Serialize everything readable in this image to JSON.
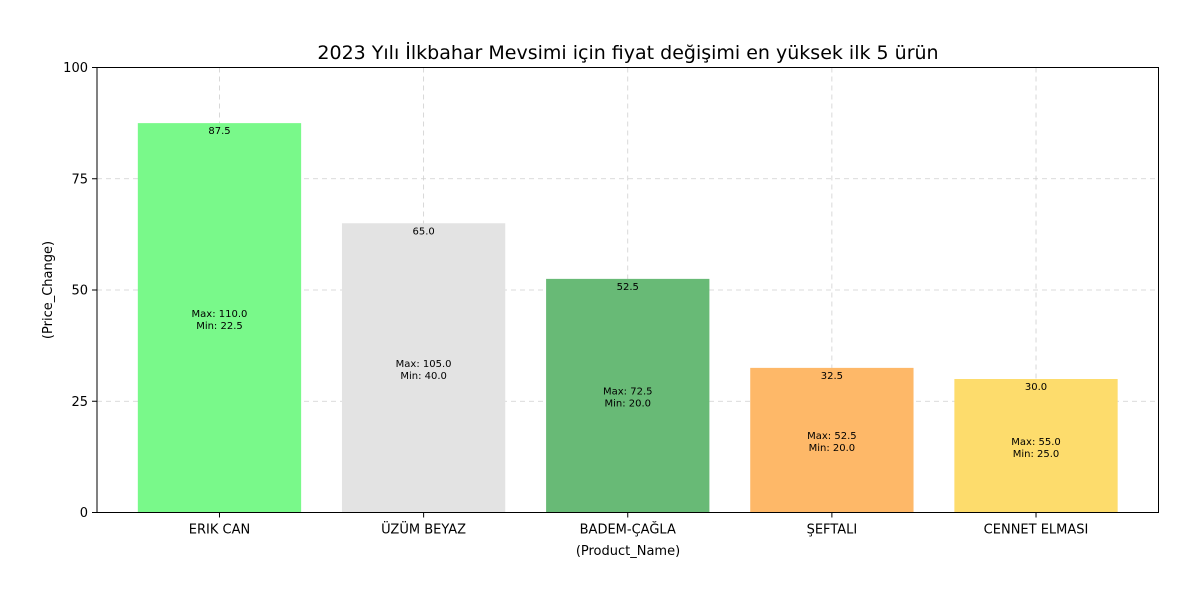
{
  "chart_data": {
    "type": "bar",
    "title": "2023 Yılı İlkbahar Mevsimi için fiyat değişimi en yüksek ilk 5 ürün",
    "xlabel": "(Product_Name)",
    "ylabel": "(Price_Change)",
    "ylim": [
      0,
      100
    ],
    "yticks": [
      0,
      25,
      50,
      75,
      100
    ],
    "grid": true,
    "categories": [
      "ERIK  CAN",
      "ÜZÜM  BEYAZ",
      "BADEM-ÇAĞLA",
      "ŞEFTALI",
      "CENNET ELMASI"
    ],
    "values": [
      87.5,
      65.0,
      52.5,
      32.5,
      30.0
    ],
    "value_labels": [
      "87.5",
      "65.0",
      "52.5",
      "32.5",
      "30.0"
    ],
    "max_labels": [
      "Max: 110.0",
      "Max: 105.0",
      "Max: 72.5",
      "Max: 52.5",
      "Max: 55.0"
    ],
    "min_labels": [
      "Min: 22.5",
      "Min: 40.0",
      "Min: 20.0",
      "Min: 20.0",
      "Min: 25.0"
    ],
    "colors": [
      "#79f98a",
      "#e3e3e3",
      "#68ba76",
      "#feb868",
      "#fddc6c"
    ]
  }
}
